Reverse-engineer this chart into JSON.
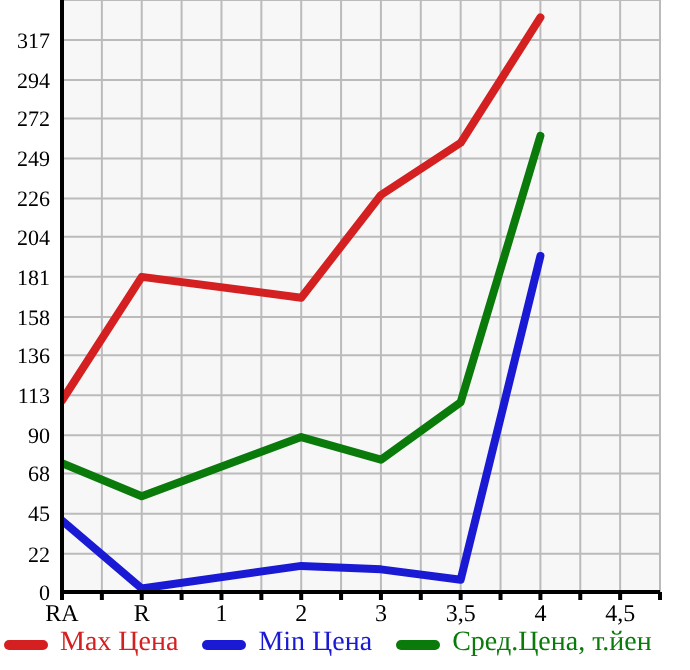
{
  "chart_data": {
    "type": "line",
    "categories": [
      "RA",
      "R",
      "1",
      "2",
      "3",
      "3,5",
      "4",
      "4,5"
    ],
    "series": [
      {
        "name": "Max Цена",
        "color": "#d42020",
        "values": [
          110,
          181,
          null,
          169,
          228,
          258,
          330,
          null
        ]
      },
      {
        "name": "Min Цена",
        "color": "#1a1ad4",
        "values": [
          41,
          2,
          null,
          15,
          13,
          7,
          193,
          null
        ]
      },
      {
        "name": "Сред.Цена, т.йен",
        "color": "#0a7a0a",
        "values": [
          74,
          55,
          null,
          89,
          76,
          109,
          262,
          null
        ]
      }
    ],
    "ylim": [
      0,
      340
    ],
    "yticks": [
      0,
      22,
      45,
      68,
      90,
      113,
      136,
      158,
      181,
      204,
      226,
      249,
      272,
      294,
      317
    ],
    "grid": true,
    "legend": "bottom",
    "marker": "none",
    "line_style": "solid"
  }
}
